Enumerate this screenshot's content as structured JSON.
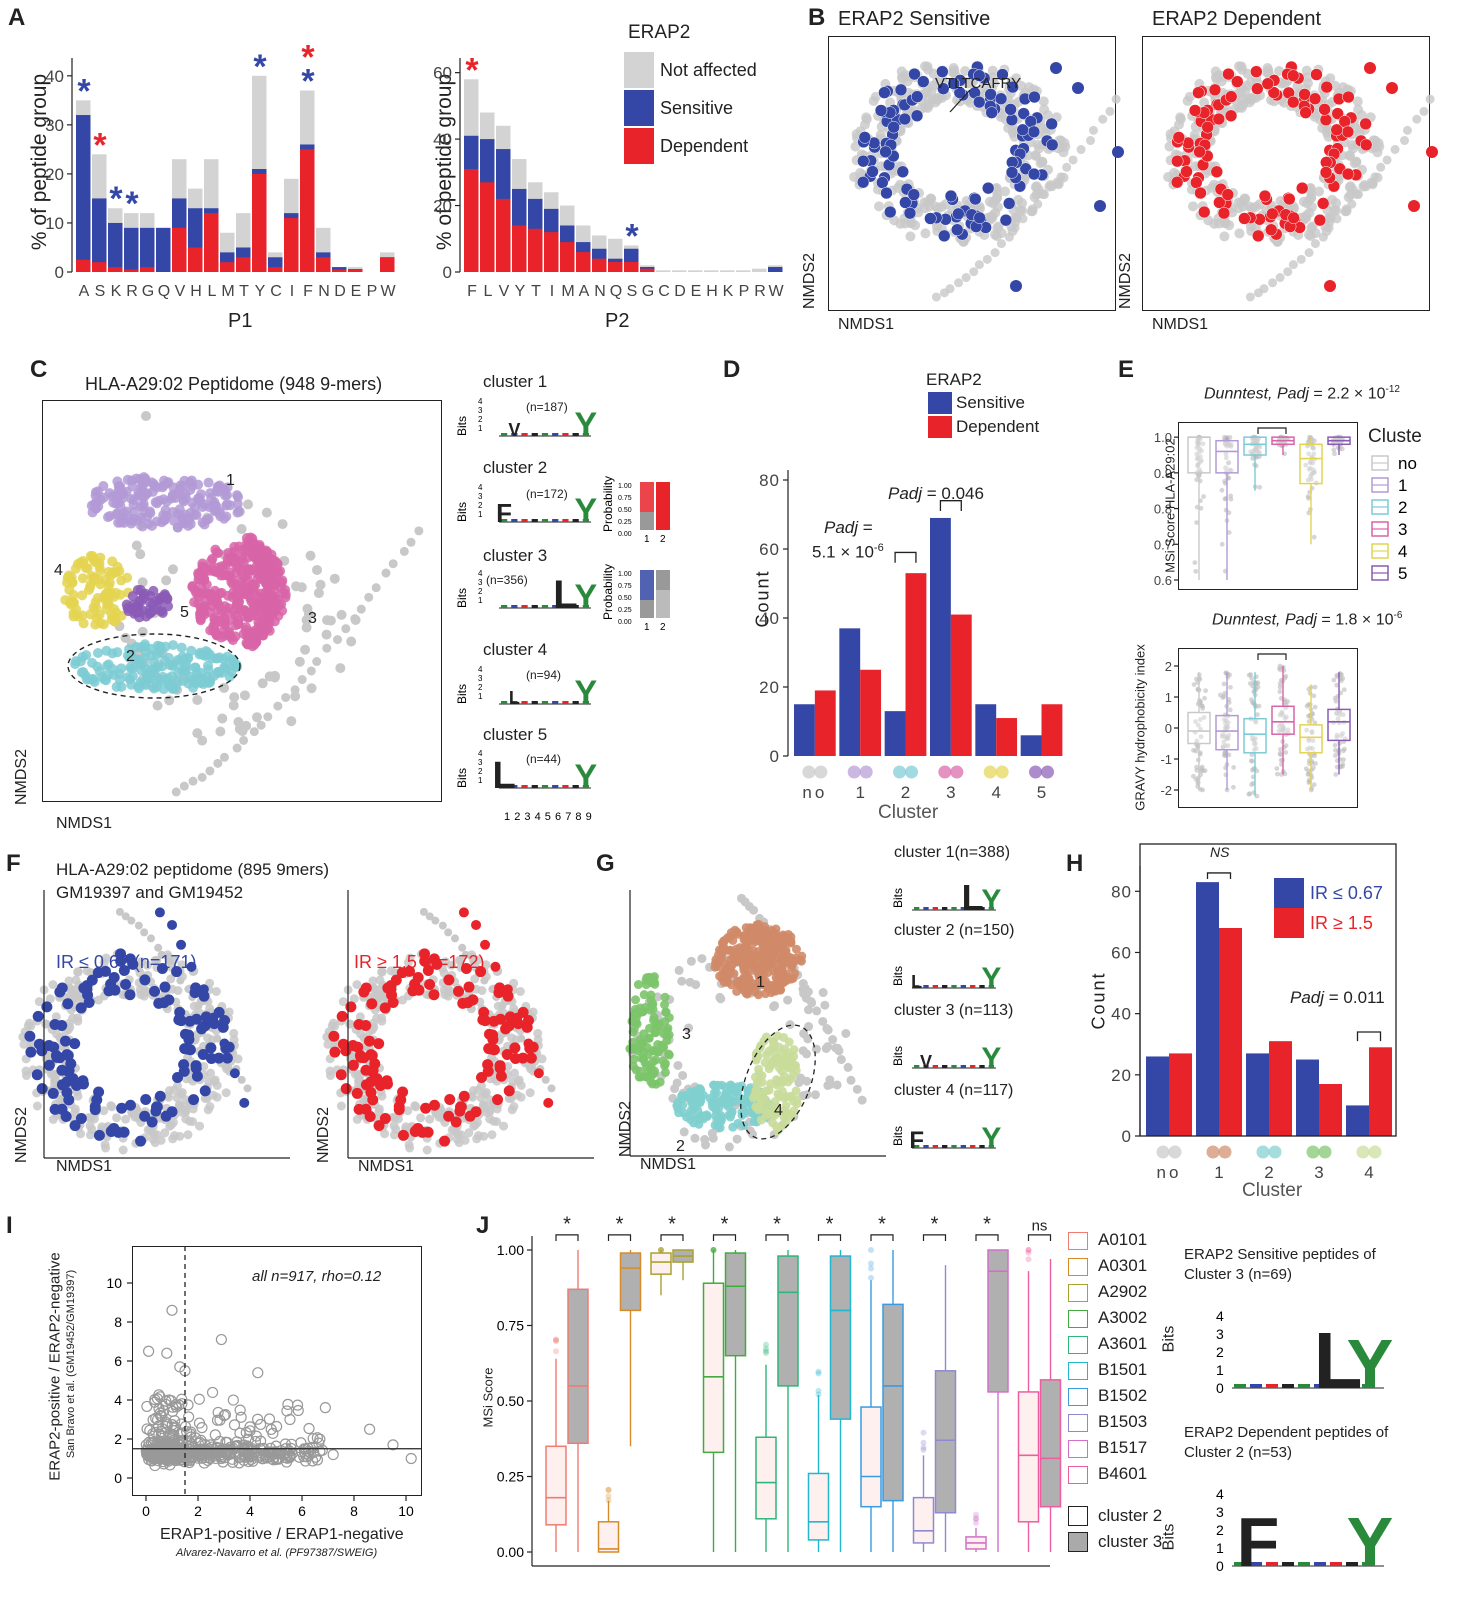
{
  "colors": {
    "not_affected": "#d3d3d3",
    "sensitive": "#3447a6",
    "dependent": "#e8232a",
    "cluster1": "#b39ad6",
    "cluster2": "#7ccbd4",
    "cluster3": "#d864a8",
    "cluster4": "#e4d450",
    "cluster5": "#8a5bb6",
    "grey": "#c8c8c8",
    "g1": "#d08a68",
    "g2": "#7fcfcf",
    "g3": "#7cc46a",
    "g4": "#c9dc9a"
  },
  "panel_labels": {
    "A": "A",
    "B": "B",
    "C": "C",
    "D": "D",
    "E": "E",
    "F": "F",
    "G": "G",
    "H": "H",
    "I": "I",
    "J": "J"
  },
  "panelA": {
    "legend_title": "ERAP2",
    "legend": [
      "Not affected",
      "Sensitive",
      "Dependent"
    ],
    "ylabel": "% of peptide group",
    "p1": {
      "xlabel": "P1",
      "ylim": [
        0,
        42
      ],
      "yticks": [
        0,
        10,
        20,
        30,
        40
      ],
      "categories": [
        "A",
        "S",
        "K",
        "R",
        "G",
        "Q",
        "V",
        "H",
        "L",
        "M",
        "T",
        "Y",
        "C",
        "I",
        "F",
        "N",
        "D",
        "E",
        "P",
        "W"
      ],
      "not_affected": [
        35,
        24,
        13,
        12,
        12,
        9,
        23,
        17,
        23,
        8,
        12,
        40,
        4,
        19,
        37,
        9,
        1,
        1,
        0,
        4
      ],
      "sensitive": [
        32,
        15,
        10,
        9,
        9,
        9,
        15,
        13,
        13,
        4,
        5,
        21,
        3,
        12,
        26,
        4,
        1,
        0.6,
        0,
        3
      ],
      "dependent": [
        2.5,
        2,
        1,
        0.5,
        1,
        0,
        9,
        5,
        12,
        2,
        3,
        20,
        1,
        11,
        25,
        3,
        0.5,
        0.5,
        0,
        3
      ],
      "stars": [
        {
          "i": 0,
          "color": "blue",
          "level": 1
        },
        {
          "i": 1,
          "color": "red",
          "level": 1
        },
        {
          "i": 2,
          "color": "blue",
          "level": 1
        },
        {
          "i": 3,
          "color": "blue",
          "level": 1
        },
        {
          "i": 11,
          "color": "blue",
          "level": 1
        },
        {
          "i": 14,
          "color": "blue",
          "level": 1
        },
        {
          "i": 14,
          "color": "red",
          "level": 2
        }
      ]
    },
    "p2": {
      "xlabel": "P2",
      "ylim": [
        0,
        62
      ],
      "yticks": [
        0,
        20,
        40,
        60
      ],
      "categories": [
        "F",
        "L",
        "V",
        "Y",
        "T",
        "I",
        "M",
        "A",
        "N",
        "Q",
        "S",
        "G",
        "C",
        "D",
        "E",
        "H",
        "K",
        "P",
        "R",
        "W"
      ],
      "not_affected": [
        58,
        48,
        44,
        34,
        27,
        24,
        20,
        14,
        11,
        10,
        8,
        2,
        0.5,
        0.5,
        0.5,
        0.5,
        0.5,
        0.5,
        1,
        2
      ],
      "sensitive": [
        41,
        40,
        37,
        25,
        22,
        19,
        14,
        9,
        7,
        4,
        7,
        1.5,
        0,
        0,
        0,
        0,
        0,
        0,
        0,
        1.5
      ],
      "dependent": [
        31,
        27,
        22,
        14,
        13,
        12,
        9,
        6,
        4,
        3,
        3,
        1,
        0,
        0,
        0,
        0,
        0,
        0,
        0,
        0
      ],
      "stars": [
        {
          "i": 0,
          "color": "red",
          "level": 1
        },
        {
          "i": 10,
          "color": "blue",
          "level": 1
        }
      ]
    }
  },
  "panelB": {
    "title_left": "ERAP2 Sensitive",
    "title_right": "ERAP2 Dependent",
    "annotation": "VTLTCAFRY",
    "xlabel": "NMDS1",
    "ylabel": "NMDS2"
  },
  "panelC": {
    "title": "HLA-A29:02 Peptidome (948 9-mers)",
    "xlabel": "NMDS1",
    "ylabel": "NMDS2",
    "cluster_labels": [
      "1",
      "2",
      "3",
      "4",
      "5"
    ],
    "logos": [
      {
        "name": "cluster 1",
        "n": "(n=187)"
      },
      {
        "name": "cluster 2",
        "n": "(n=172)"
      },
      {
        "name": "cluster 3",
        "n": "(n=356)"
      },
      {
        "name": "cluster 4",
        "n": "(n=94)"
      },
      {
        "name": "cluster 5",
        "n": "(n=44)"
      }
    ],
    "bits_label": "Bits",
    "bits_ticks": [
      "4",
      "3",
      "2",
      "1"
    ],
    "positions": [
      "1",
      "2",
      "3",
      "4",
      "5",
      "6",
      "7",
      "8",
      "9"
    ],
    "prob_label": "Probability",
    "prob_ticks": [
      "1.00",
      "0.75",
      "0.50",
      "0.25",
      "0.00"
    ],
    "prob_x": [
      "1",
      "2"
    ]
  },
  "panelD": {
    "type": "bar",
    "legend_title": "ERAP2",
    "legend": [
      "Sensitive",
      "Dependent"
    ],
    "ylabel": "Count",
    "xlabel": "Cluster",
    "categories": [
      "no",
      "1",
      "2",
      "3",
      "4",
      "5"
    ],
    "ylim": [
      0,
      80
    ],
    "yticks": [
      0,
      20,
      40,
      60,
      80
    ],
    "sensitive": [
      15,
      37,
      13,
      69,
      15,
      6
    ],
    "dependent": [
      19,
      25,
      53,
      41,
      11,
      15
    ],
    "ann1_a": "Padj",
    "ann1_b": "=",
    "ann1_c": "5.1 × 10",
    "ann1_exp": "-6",
    "ann2_a": "Padj",
    "ann2_b": "= 0.046"
  },
  "panelE": {
    "top": {
      "test": "Dunntest,",
      "padj": "Padj",
      "val": "= 2.2 × 10",
      "exp": "-12",
      "ylabel": "MSi Score HLA-A29:02",
      "yticks": [
        "0.6",
        "0.7",
        "0.8",
        "0.9",
        "1.0"
      ],
      "boxes": [
        {
          "q1": 0.9,
          "med": 1.0,
          "q3": 1.0,
          "lo": 0.6,
          "hi": 1.0
        },
        {
          "q1": 0.9,
          "med": 0.96,
          "q3": 0.99,
          "lo": 0.6,
          "hi": 1.0
        },
        {
          "q1": 0.95,
          "med": 0.98,
          "q3": 1.0,
          "lo": 0.85,
          "hi": 1.0
        },
        {
          "q1": 0.98,
          "med": 0.99,
          "q3": 1.0,
          "lo": 0.95,
          "hi": 1.0
        },
        {
          "q1": 0.87,
          "med": 0.94,
          "q3": 0.98,
          "lo": 0.7,
          "hi": 1.0
        },
        {
          "q1": 0.98,
          "med": 0.99,
          "q3": 1.0,
          "lo": 0.95,
          "hi": 1.0
        }
      ]
    },
    "bottom": {
      "test": "Dunntest,",
      "padj": "Padj",
      "val": "= 1.8 × 10",
      "exp": "-6",
      "ylabel": "GRAVY hydrophobicity index",
      "yticks": [
        "-2",
        "-1",
        "0",
        "1",
        "2"
      ],
      "boxes": [
        {
          "q1": -0.5,
          "med": -0.1,
          "q3": 0.5,
          "lo": -2,
          "hi": 1.8
        },
        {
          "q1": -0.7,
          "med": -0.1,
          "q3": 0.4,
          "lo": -2,
          "hi": 1.8
        },
        {
          "q1": -0.8,
          "med": -0.2,
          "q3": 0.3,
          "lo": -2.2,
          "hi": 1.8
        },
        {
          "q1": -0.2,
          "med": 0.2,
          "q3": 0.7,
          "lo": -1.5,
          "hi": 2
        },
        {
          "q1": -0.8,
          "med": -0.3,
          "q3": 0.1,
          "lo": -2,
          "hi": 1.4
        },
        {
          "q1": -0.4,
          "med": 0.2,
          "q3": 0.6,
          "lo": -1.5,
          "hi": 1.8
        }
      ]
    },
    "legend_title": "Cluste",
    "legend": [
      "no",
      "1",
      "2",
      "3",
      "4",
      "5"
    ]
  },
  "panelF": {
    "title1": "HLA-A29:02 peptidome (895 9mers)",
    "title2": "GM19397 and GM19452",
    "label_left": "IR ≤ 0.67 (n=171)",
    "label_right": "IR ≥ 1.5 (n=172)",
    "xlabel": "NMDS1",
    "ylabel": "NMDS2"
  },
  "panelG": {
    "xlabel": "NMDS1",
    "ylabel": "NMDS2",
    "cluster_labels": [
      "1",
      "2",
      "3",
      "4"
    ],
    "logos": [
      {
        "name": "cluster 1(n=388)"
      },
      {
        "name": "cluster 2 (n=150)"
      },
      {
        "name": "cluster 3 (n=113)"
      },
      {
        "name": "cluster 4 (n=117)"
      }
    ]
  },
  "panelH": {
    "type": "bar",
    "legend": [
      "IR ≤ 0.67",
      "IR ≥ 1.5"
    ],
    "ylabel": "Count",
    "xlabel": "Cluster",
    "categories": [
      "no",
      "1",
      "2",
      "3",
      "4"
    ],
    "ylim": [
      0,
      85
    ],
    "yticks": [
      0,
      20,
      40,
      60,
      80
    ],
    "ir_low": [
      26,
      83,
      27,
      25,
      10
    ],
    "ir_high": [
      27,
      68,
      31,
      17,
      29
    ],
    "ns": "NS",
    "padj_a": "Padj",
    "padj_b": "= 0.011"
  },
  "panelI": {
    "annotation": "all n=917, rho=0.12",
    "ylabel1": "ERAP2-positive / ERAP2-negative",
    "ylabel2": "San Bravo et al. (GM19452/GM19397)",
    "xlabel1": "ERAP1-positive / ERAP1-negative",
    "xlabel2": "Alvarez-Navarro et al. (PF97387/SWEIG)",
    "xticks": [
      "0",
      "2",
      "4",
      "6",
      "8",
      "10"
    ],
    "yticks": [
      "0",
      "2",
      "4",
      "6",
      "8",
      "10"
    ],
    "vline": 1.5,
    "hline": 1.5
  },
  "panelJ": {
    "ylabel": "MSi Score",
    "yticks": [
      "0.00",
      "0.25",
      "0.50",
      "0.75",
      "1.00"
    ],
    "alleles": [
      "A0101",
      "A0301",
      "A2902",
      "A3002",
      "A3601",
      "B1501",
      "B1502",
      "B1503",
      "B1517",
      "B4601"
    ],
    "allele_colors": [
      "#f07b72",
      "#d68b2a",
      "#a8a330",
      "#41ab3f",
      "#2fb67a",
      "#22b6cf",
      "#3a9be0",
      "#8f89cf",
      "#d270c8",
      "#ee5d9f"
    ],
    "sig": [
      "*",
      "*",
      "*",
      "*",
      "*",
      "*",
      "*",
      "*",
      "*",
      "ns"
    ],
    "c2": [
      {
        "q1": 0.09,
        "med": 0.18,
        "q3": 0.35,
        "lo": 0,
        "hi": 0.64
      },
      {
        "q1": 0.0,
        "med": 0.01,
        "q3": 0.1,
        "lo": 0,
        "hi": 0.17
      },
      {
        "q1": 0.92,
        "med": 0.96,
        "q3": 0.99,
        "lo": 0.85,
        "hi": 1.0
      },
      {
        "q1": 0.33,
        "med": 0.58,
        "q3": 0.89,
        "lo": 0,
        "hi": 1.0
      },
      {
        "q1": 0.11,
        "med": 0.23,
        "q3": 0.38,
        "lo": 0,
        "hi": 0.62
      },
      {
        "q1": 0.04,
        "med": 0.1,
        "q3": 0.26,
        "lo": 0,
        "hi": 0.52
      },
      {
        "q1": 0.15,
        "med": 0.25,
        "q3": 0.48,
        "lo": 0,
        "hi": 0.9
      },
      {
        "q1": 0.03,
        "med": 0.07,
        "q3": 0.18,
        "lo": 0,
        "hi": 0.32
      },
      {
        "q1": 0.01,
        "med": 0.03,
        "q3": 0.05,
        "lo": 0,
        "hi": 0.08
      },
      {
        "q1": 0.1,
        "med": 0.32,
        "q3": 0.53,
        "lo": 0,
        "hi": 0.93
      }
    ],
    "c3": [
      {
        "q1": 0.36,
        "med": 0.55,
        "q3": 0.87,
        "lo": 0,
        "hi": 1.0
      },
      {
        "q1": 0.8,
        "med": 0.94,
        "q3": 0.99,
        "lo": 0.35,
        "hi": 1.0
      },
      {
        "q1": 0.96,
        "med": 0.98,
        "q3": 1.0,
        "lo": 0.9,
        "hi": 1.0
      },
      {
        "q1": 0.65,
        "med": 0.88,
        "q3": 0.99,
        "lo": 0,
        "hi": 1.0
      },
      {
        "q1": 0.55,
        "med": 0.86,
        "q3": 0.98,
        "lo": 0,
        "hi": 1.0
      },
      {
        "q1": 0.44,
        "med": 0.8,
        "q3": 0.98,
        "lo": 0,
        "hi": 1.0
      },
      {
        "q1": 0.17,
        "med": 0.55,
        "q3": 0.82,
        "lo": 0,
        "hi": 1.0
      },
      {
        "q1": 0.13,
        "med": 0.37,
        "q3": 0.6,
        "lo": 0,
        "hi": 0.95
      },
      {
        "q1": 0.53,
        "med": 0.93,
        "q3": 1.0,
        "lo": 0,
        "hi": 1.0
      },
      {
        "q1": 0.15,
        "med": 0.31,
        "q3": 0.57,
        "lo": 0,
        "hi": 0.97
      }
    ],
    "legend_c2": "cluster 2",
    "legend_c3": "cluster 3",
    "logo1_title1": "ERAP2 Sensitive peptides of",
    "logo1_title2": "Cluster 3 (n=69)",
    "logo2_title1": "ERAP2 Dependent peptides of",
    "logo2_title2": "Cluster 2 (n=53)",
    "bits": "Bits",
    "bits_ticks": [
      "0",
      "1",
      "2",
      "3",
      "4"
    ]
  }
}
